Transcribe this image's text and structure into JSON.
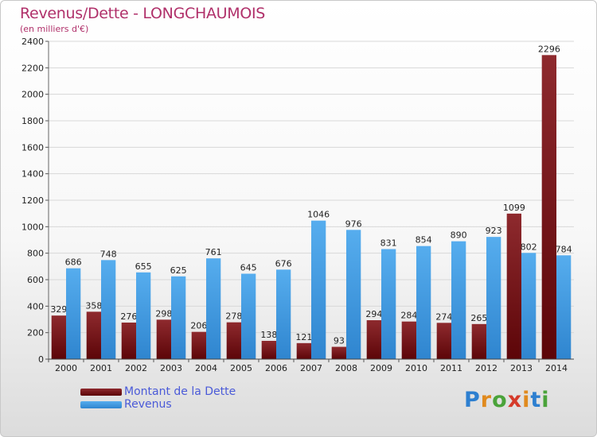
{
  "chart_data": {
    "type": "bar",
    "title": "Revenus/Dette - LONGCHAUMOIS",
    "subtitle": "(en milliers d'€)",
    "categories": [
      "2000",
      "2001",
      "2002",
      "2003",
      "2004",
      "2005",
      "2006",
      "2007",
      "2008",
      "2009",
      "2010",
      "2011",
      "2012",
      "2013",
      "2014"
    ],
    "series": [
      {
        "name": "Montant de la Dette",
        "color": "#7a1418",
        "values": [
          329,
          358,
          276,
          298,
          206,
          278,
          138,
          121,
          93,
          294,
          284,
          274,
          265,
          1099,
          2296
        ]
      },
      {
        "name": "Revenus",
        "color": "#3a97e0",
        "values": [
          686,
          748,
          655,
          625,
          761,
          645,
          676,
          1046,
          976,
          831,
          854,
          890,
          923,
          802,
          784
        ]
      }
    ],
    "ylim": [
      0,
      2400
    ],
    "yticks": [
      0,
      200,
      400,
      600,
      800,
      1000,
      1200,
      1400,
      1600,
      1800,
      2000,
      2200,
      2400
    ],
    "grid": true,
    "legend_position": "bottom-left",
    "xlabel": "",
    "ylabel": ""
  },
  "logo": {
    "letters": [
      "P",
      "r",
      "o",
      "x",
      "i",
      "t",
      "i"
    ],
    "colors": [
      "#2d7fd0",
      "#e08a1e",
      "#4aa33a",
      "#d53a2a",
      "#e08a1e",
      "#2d7fd0",
      "#4aa33a"
    ]
  }
}
